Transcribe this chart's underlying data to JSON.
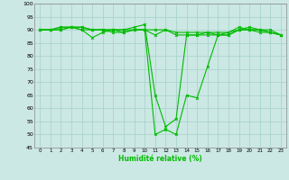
{
  "xlabel": "Humidité relative (%)",
  "background_color": "#cce8e4",
  "grid_color": "#aad4cc",
  "line_color": "#00bb00",
  "ylim": [
    45,
    100
  ],
  "xlim": [
    -0.5,
    23.5
  ],
  "yticks": [
    45,
    50,
    55,
    60,
    65,
    70,
    75,
    80,
    85,
    90,
    95,
    100
  ],
  "xticks": [
    0,
    1,
    2,
    3,
    4,
    5,
    6,
    7,
    8,
    9,
    10,
    11,
    12,
    13,
    14,
    15,
    16,
    17,
    18,
    19,
    20,
    21,
    22,
    23
  ],
  "series": [
    [
      90,
      90,
      91,
      91,
      90,
      87,
      89,
      90,
      89,
      90,
      90,
      50,
      52,
      50,
      65,
      64,
      76,
      88,
      88,
      90,
      91,
      90,
      90,
      88
    ],
    [
      90,
      90,
      91,
      91,
      91,
      90,
      90,
      90,
      90,
      91,
      92,
      65,
      53,
      56,
      88,
      88,
      88,
      88,
      89,
      91,
      90,
      89,
      89,
      88
    ],
    [
      90,
      90,
      90,
      91,
      91,
      90,
      90,
      90,
      90,
      90,
      90,
      88,
      90,
      88,
      88,
      88,
      89,
      89,
      89,
      90,
      90,
      90,
      89,
      88
    ],
    [
      90,
      90,
      90,
      91,
      90,
      90,
      90,
      89,
      89,
      90,
      90,
      90,
      90,
      89,
      89,
      89,
      89,
      88,
      88,
      90,
      90,
      90,
      89,
      88
    ]
  ]
}
